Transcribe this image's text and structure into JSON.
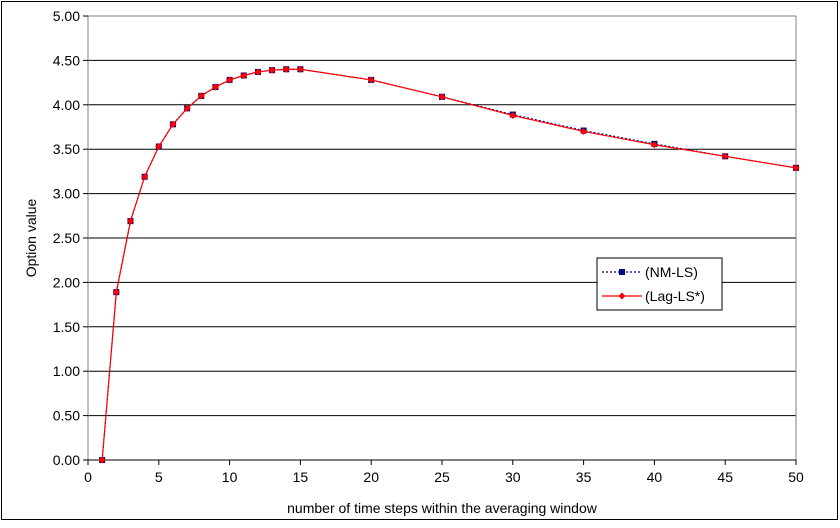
{
  "chart_data": {
    "type": "line",
    "title": "",
    "xlabel": "number of time steps within the averaging window",
    "ylabel": "Option value",
    "xlim": [
      0,
      50
    ],
    "ylim": [
      0,
      5
    ],
    "x_ticks": [
      "0",
      "5",
      "10",
      "15",
      "20",
      "25",
      "30",
      "35",
      "40",
      "45",
      "50"
    ],
    "y_ticks": [
      "0.00",
      "0.50",
      "1.00",
      "1.50",
      "2.00",
      "2.50",
      "3.00",
      "3.50",
      "4.00",
      "4.50",
      "5.00"
    ],
    "grid": "horizontal",
    "legend_position": "right-center",
    "series": [
      {
        "name": "(NM-LS)",
        "color": "#000080",
        "line": "dotted",
        "marker": "square",
        "x": [
          1,
          2,
          3,
          4,
          5,
          6,
          7,
          8,
          9,
          10,
          11,
          12,
          13,
          14,
          15,
          20,
          25,
          30,
          35,
          40,
          45,
          50
        ],
        "y": [
          0.0,
          1.89,
          2.69,
          3.19,
          3.53,
          3.78,
          3.96,
          4.1,
          4.2,
          4.28,
          4.33,
          4.37,
          4.39,
          4.4,
          4.4,
          4.28,
          4.09,
          3.89,
          3.71,
          3.56,
          3.42,
          3.29
        ]
      },
      {
        "name": "(Lag-LS*)",
        "color": "#ff0000",
        "line": "solid",
        "marker": "diamond",
        "x": [
          1,
          2,
          3,
          4,
          5,
          6,
          7,
          8,
          9,
          10,
          11,
          12,
          13,
          14,
          15,
          20,
          25,
          30,
          35,
          40,
          45,
          50
        ],
        "y": [
          0.0,
          1.89,
          2.69,
          3.19,
          3.53,
          3.78,
          3.96,
          4.1,
          4.2,
          4.28,
          4.33,
          4.37,
          4.39,
          4.4,
          4.4,
          4.28,
          4.09,
          3.88,
          3.7,
          3.55,
          3.42,
          3.29
        ]
      }
    ]
  }
}
